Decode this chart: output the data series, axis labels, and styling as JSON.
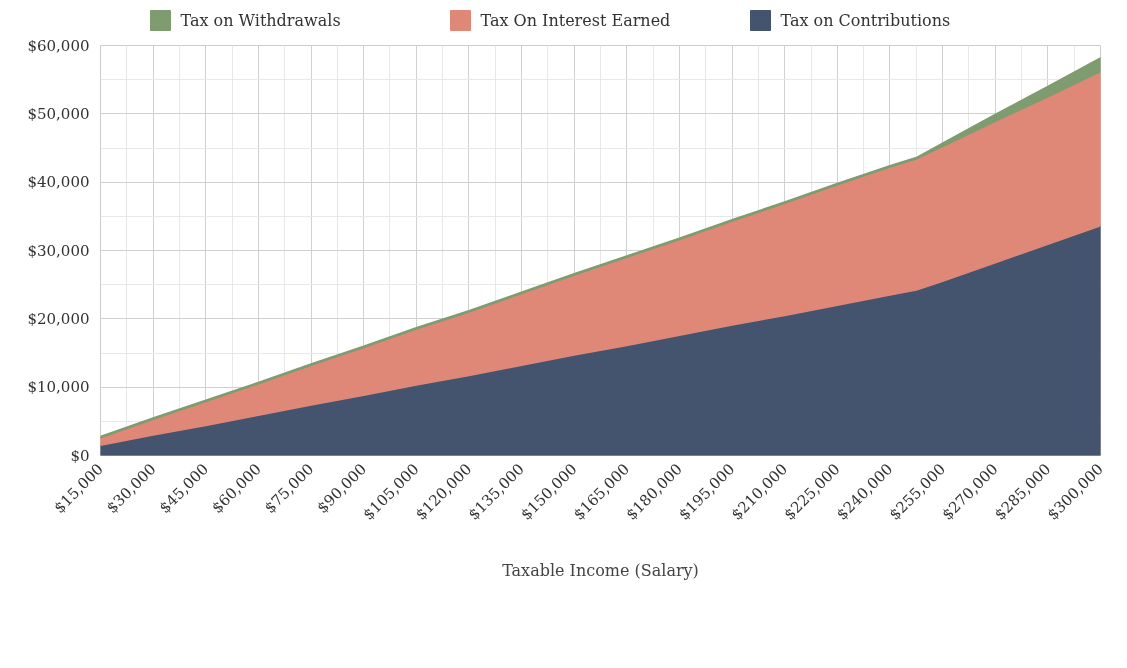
{
  "chart_data": {
    "type": "area",
    "stacked": true,
    "xlabel": "Taxable Income (Salary)",
    "x": [
      15000,
      30000,
      45000,
      60000,
      75000,
      90000,
      105000,
      120000,
      135000,
      150000,
      165000,
      180000,
      195000,
      210000,
      225000,
      240000,
      247500,
      255000,
      270000,
      285000,
      300000
    ],
    "series": [
      {
        "name": "Tax on Contributions",
        "color": "#44546e",
        "values": [
          1500,
          3000,
          4400,
          5900,
          7400,
          8800,
          10300,
          11700,
          13200,
          14700,
          16100,
          17600,
          19100,
          20500,
          22000,
          23500,
          24200,
          25500,
          28200,
          30900,
          33600
        ]
      },
      {
        "name": "Tax On Interest Earned",
        "color": "#df8878",
        "values": [
          1100,
          2300,
          3500,
          4600,
          5800,
          7000,
          8200,
          9300,
          10500,
          11700,
          12900,
          14000,
          15200,
          16400,
          17600,
          18700,
          19200,
          19700,
          20700,
          21600,
          22600
        ]
      },
      {
        "name": "Tax on Withdrawals",
        "color": "#7e9c6f",
        "values": [
          200,
          200,
          200,
          200,
          200,
          200,
          200,
          200,
          200,
          200,
          200,
          200,
          200,
          200,
          200,
          200,
          200,
          500,
          1000,
          1500,
          2000
        ]
      }
    ],
    "xlim": [
      15000,
      300000
    ],
    "xticks": [
      {
        "value": 15000,
        "label": "$15,000"
      },
      {
        "value": 30000,
        "label": "$30,000"
      },
      {
        "value": 45000,
        "label": "$45,000"
      },
      {
        "value": 60000,
        "label": "$60,000"
      },
      {
        "value": 75000,
        "label": "$75,000"
      },
      {
        "value": 90000,
        "label": "$90,000"
      },
      {
        "value": 105000,
        "label": "$105,000"
      },
      {
        "value": 120000,
        "label": "$120,000"
      },
      {
        "value": 135000,
        "label": "$135,000"
      },
      {
        "value": 150000,
        "label": "$150,000"
      },
      {
        "value": 165000,
        "label": "$165,000"
      },
      {
        "value": 180000,
        "label": "$180,000"
      },
      {
        "value": 195000,
        "label": "$195,000"
      },
      {
        "value": 210000,
        "label": "$210,000"
      },
      {
        "value": 225000,
        "label": "$225,000"
      },
      {
        "value": 240000,
        "label": "$240,000"
      },
      {
        "value": 255000,
        "label": "$255,000"
      },
      {
        "value": 270000,
        "label": "$270,000"
      },
      {
        "value": 285000,
        "label": "$285,000"
      },
      {
        "value": 300000,
        "label": "$300,000"
      }
    ],
    "ylim": [
      0,
      60000
    ],
    "yticks": [
      {
        "value": 0,
        "label": "$0"
      },
      {
        "value": 10000,
        "label": "$10,000"
      },
      {
        "value": 20000,
        "label": "$20,000"
      },
      {
        "value": 30000,
        "label": "$30,000"
      },
      {
        "value": 40000,
        "label": "$40,000"
      },
      {
        "value": 50000,
        "label": "$50,000"
      },
      {
        "value": 60000,
        "label": "$60,000"
      }
    ],
    "grid": true,
    "legend": "top"
  }
}
